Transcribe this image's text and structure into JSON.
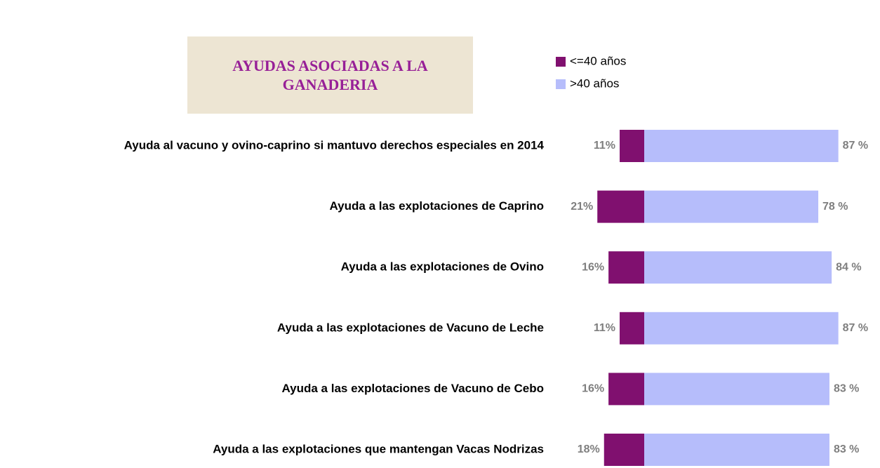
{
  "chart_data": {
    "type": "diverging-bar",
    "title": "AYUDAS ASOCIADAS A LA GANADERIA",
    "categories": [
      "Ayuda al vacuno y ovino-caprino si mantuvo derechos especiales en 2014",
      "Ayuda a las explotaciones de Caprino",
      "Ayuda a las explotaciones de Ovino",
      "Ayuda a las explotaciones de Vacuno de Leche",
      "Ayuda a las explotaciones de Vacuno de Cebo",
      "Ayuda a las explotaciones que mantengan Vacas Nodrizas"
    ],
    "series": [
      {
        "name": "<=40 años",
        "color": "#80106f",
        "values": [
          11,
          21,
          16,
          11,
          16,
          18
        ],
        "value_labels": [
          "11%",
          "21%",
          "16%",
          "11%",
          "16%",
          "18%"
        ]
      },
      {
        "name": ">40 años",
        "color": "#b6bdfb",
        "values": [
          87,
          78,
          84,
          87,
          83,
          83
        ],
        "value_labels": [
          "87 %",
          "78 %",
          "84 %",
          "87 %",
          "83 %",
          "83 %"
        ]
      }
    ]
  }
}
